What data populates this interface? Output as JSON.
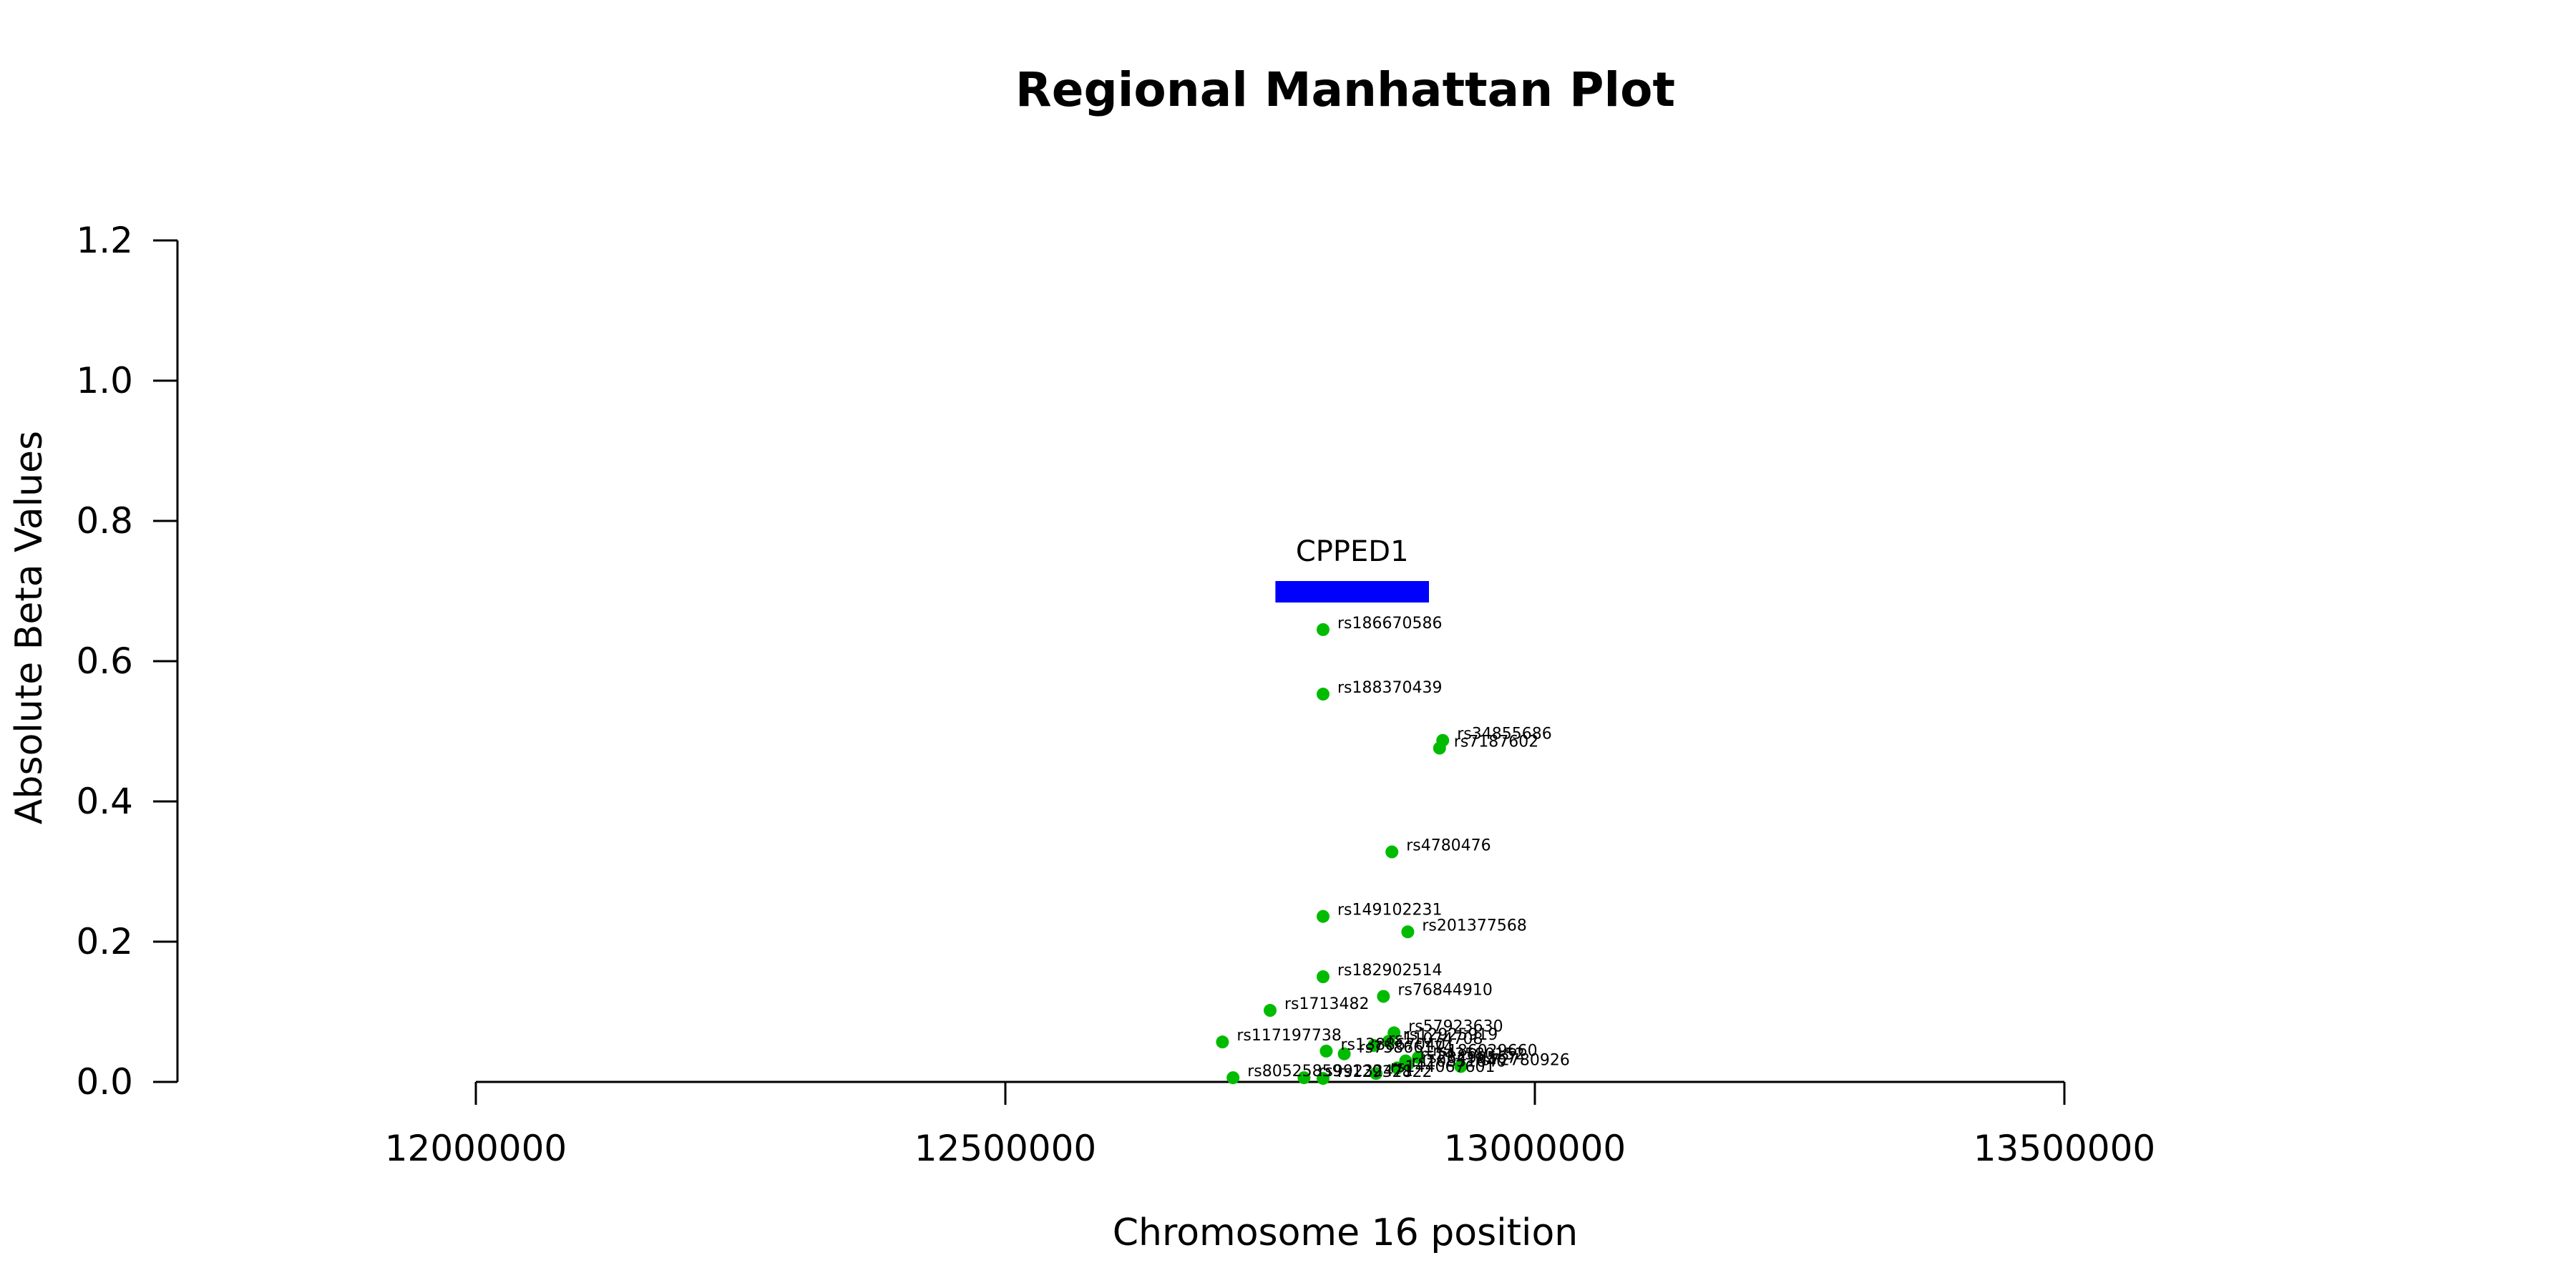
{
  "chart_data": {
    "type": "scatter",
    "title": "Regional Manhattan Plot",
    "xlabel": "Chromosome 16 position",
    "ylabel": "Absolute Beta Values",
    "xlim": [
      12000000,
      13500000
    ],
    "ylim": [
      0,
      1.2
    ],
    "x_ticks": [
      12000000,
      12500000,
      13000000,
      13500000
    ],
    "y_ticks": [
      "0.0",
      "0.2",
      "0.4",
      "0.6",
      "0.8",
      "1.0",
      "1.2"
    ],
    "grid": false,
    "point_color": "#00bb00",
    "gene": {
      "name": "CPPED1",
      "start": 12755000,
      "end": 12900000,
      "y": 0.7,
      "color": "#0000ff"
    },
    "points": [
      {
        "label": "rs186670586",
        "x": 12800000,
        "y": 0.645
      },
      {
        "label": "rs188370439",
        "x": 12800000,
        "y": 0.553
      },
      {
        "label": "rs34855686",
        "x": 12913000,
        "y": 0.487
      },
      {
        "label": "rs7187602",
        "x": 12910000,
        "y": 0.476
      },
      {
        "label": "rs4780476",
        "x": 12865000,
        "y": 0.328
      },
      {
        "label": "rs149102231",
        "x": 12800000,
        "y": 0.236
      },
      {
        "label": "rs201377568",
        "x": 12880000,
        "y": 0.214
      },
      {
        "label": "rs182902514",
        "x": 12800000,
        "y": 0.15
      },
      {
        "label": "rs76844910",
        "x": 12857000,
        "y": 0.122
      },
      {
        "label": "rs1713482",
        "x": 12750000,
        "y": 0.102
      },
      {
        "label": "rs117197738",
        "x": 12705000,
        "y": 0.057
      },
      {
        "label": "rs57923630",
        "x": 12867000,
        "y": 0.07
      },
      {
        "label": "rs12925919",
        "x": 12862000,
        "y": 0.058
      },
      {
        "label": "rs11074708",
        "x": 12848000,
        "y": 0.052
      },
      {
        "label": "rs138867040",
        "x": 12803000,
        "y": 0.044
      },
      {
        "label": "rs75866174",
        "x": 12820000,
        "y": 0.04
      },
      {
        "label": "rs186029660",
        "x": 12890000,
        "y": 0.035
      },
      {
        "label": "rs143580152",
        "x": 12878000,
        "y": 0.03
      },
      {
        "label": "rs72780926",
        "x": 12930000,
        "y": 0.022
      },
      {
        "label": "rs28499567",
        "x": 12880000,
        "y": 0.025
      },
      {
        "label": "rs10851640",
        "x": 12870000,
        "y": 0.02
      },
      {
        "label": "rs144067601",
        "x": 12850000,
        "y": 0.012
      },
      {
        "label": "rs80525859",
        "x": 12715000,
        "y": 0.006
      },
      {
        "label": "rs99232471",
        "x": 12782000,
        "y": 0.006
      },
      {
        "label": "rs12932822",
        "x": 12800000,
        "y": 0.005
      }
    ]
  }
}
